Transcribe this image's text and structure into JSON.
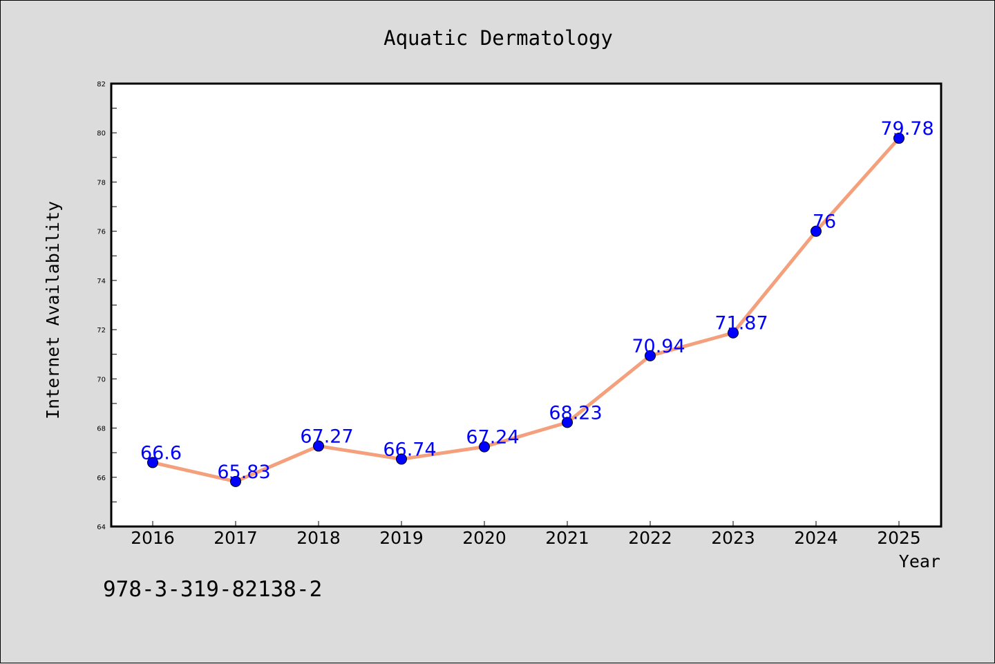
{
  "chart_data": {
    "type": "line",
    "title": "Aquatic Dermatology",
    "xlabel": "Year",
    "ylabel": "Internet Availability",
    "categories": [
      "2016",
      "2017",
      "2018",
      "2019",
      "2020",
      "2021",
      "2022",
      "2023",
      "2024",
      "2025"
    ],
    "values": [
      66.6,
      65.83,
      67.27,
      66.74,
      67.24,
      68.23,
      70.94,
      71.87,
      76,
      79.78
    ],
    "data_labels": [
      "66.6",
      "65.83",
      "67.27",
      "66.74",
      "67.24",
      "68.23",
      "70.94",
      "71.87",
      "76",
      "79.78"
    ],
    "ylim": [
      64,
      82
    ],
    "yticks": [
      64,
      66,
      68,
      70,
      72,
      74,
      76,
      78,
      80,
      82
    ],
    "grid": false,
    "legend": "none",
    "colors": {
      "line": "#f4a07c",
      "marker": "#0000ff",
      "data_label": "#0000ff",
      "background": "#dcdcdc",
      "plot_background": "#ffffff"
    }
  },
  "footnote": "978-3-319-82138-2"
}
